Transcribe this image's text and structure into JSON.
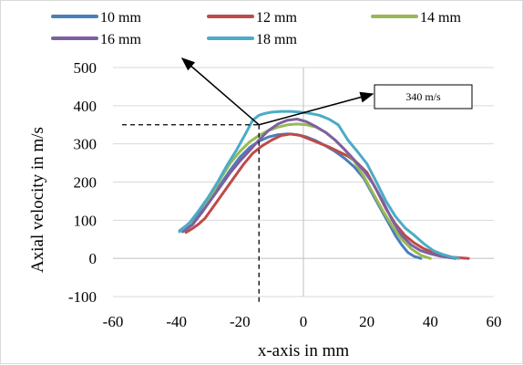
{
  "chart_data": {
    "type": "line",
    "title": "",
    "xlabel": "x-axis in mm",
    "ylabel": "Axial velocity in m/s",
    "xlim": [
      -60,
      60
    ],
    "ylim": [
      -100,
      500
    ],
    "xticks": [
      -60,
      -40,
      -20,
      0,
      20,
      40,
      60
    ],
    "yticks": [
      500,
      400,
      300,
      200,
      100,
      0,
      -100
    ],
    "grid": "horizontal",
    "legend_position": "top",
    "series": [
      {
        "name": "10 mm",
        "color": "#4a7ebb",
        "x": [
          -39,
          -37,
          -35,
          -32,
          -29,
          -26,
          -23,
          -20,
          -17,
          -14,
          -11,
          -8,
          -5,
          -2,
          1,
          4,
          7,
          10,
          13,
          16,
          19,
          21,
          23,
          25,
          27,
          29,
          31,
          33,
          35,
          37
        ],
        "y": [
          72,
          85,
          100,
          125,
          160,
          195,
          232,
          265,
          290,
          307,
          318,
          324,
          326,
          324,
          318,
          308,
          295,
          280,
          262,
          240,
          210,
          180,
          150,
          120,
          90,
          60,
          35,
          15,
          5,
          0
        ]
      },
      {
        "name": "12 mm",
        "color": "#be4b48",
        "x": [
          -37,
          -35,
          -33,
          -31,
          -28,
          -25,
          -22,
          -19,
          -16,
          -13,
          -10,
          -7,
          -4,
          -1,
          2,
          5,
          8,
          11,
          14,
          17,
          20,
          23,
          26,
          29,
          32,
          35,
          38,
          41,
          44,
          47,
          50,
          52
        ],
        "y": [
          68,
          78,
          90,
          105,
          140,
          175,
          210,
          245,
          275,
          295,
          310,
          322,
          326,
          322,
          312,
          302,
          292,
          280,
          268,
          250,
          225,
          180,
          130,
          90,
          60,
          40,
          25,
          15,
          8,
          3,
          1,
          0
        ]
      },
      {
        "name": "14 mm",
        "color": "#98b954",
        "x": [
          -38,
          -35,
          -32,
          -29,
          -26,
          -23,
          -20,
          -17,
          -14,
          -11,
          -8,
          -5,
          -2,
          1,
          4,
          7,
          10,
          13,
          16,
          19,
          22,
          25,
          28,
          31,
          34,
          37,
          40
        ],
        "y": [
          70,
          90,
          120,
          165,
          210,
          250,
          280,
          305,
          322,
          335,
          344,
          350,
          352,
          350,
          344,
          330,
          310,
          285,
          255,
          215,
          170,
          125,
          85,
          50,
          25,
          8,
          0
        ]
      },
      {
        "name": "16 mm",
        "color": "#7d60a0",
        "x": [
          -38,
          -35,
          -32,
          -29,
          -26,
          -23,
          -20,
          -17,
          -14,
          -11,
          -8,
          -5,
          -2,
          1,
          4,
          7,
          10,
          13,
          16,
          19,
          22,
          25,
          28,
          31,
          34,
          37,
          40,
          43,
          46,
          48
        ],
        "y": [
          70,
          88,
          120,
          155,
          190,
          225,
          255,
          282,
          310,
          335,
          352,
          362,
          365,
          358,
          345,
          330,
          310,
          285,
          258,
          230,
          195,
          150,
          100,
          60,
          35,
          20,
          12,
          6,
          2,
          0
        ]
      },
      {
        "name": "18 mm",
        "color": "#4bacc6",
        "x": [
          -39,
          -36,
          -33,
          -30,
          -27,
          -24,
          -21,
          -18,
          -16,
          -14,
          -12,
          -10,
          -7,
          -4,
          -1,
          2,
          5,
          8,
          11,
          14,
          17,
          20,
          23,
          26,
          29,
          32,
          35,
          38,
          41,
          44,
          47,
          49
        ],
        "y": [
          70,
          92,
          125,
          160,
          200,
          245,
          285,
          330,
          362,
          375,
          380,
          383,
          385,
          385,
          383,
          380,
          375,
          365,
          350,
          310,
          280,
          248,
          200,
          150,
          110,
          80,
          60,
          38,
          20,
          10,
          3,
          0
        ]
      }
    ],
    "annotations": {
      "label": "340 m/s",
      "reference_point": {
        "x": -14,
        "y": 350
      },
      "arrow_source": {
        "x": -14,
        "y": 350
      }
    }
  }
}
